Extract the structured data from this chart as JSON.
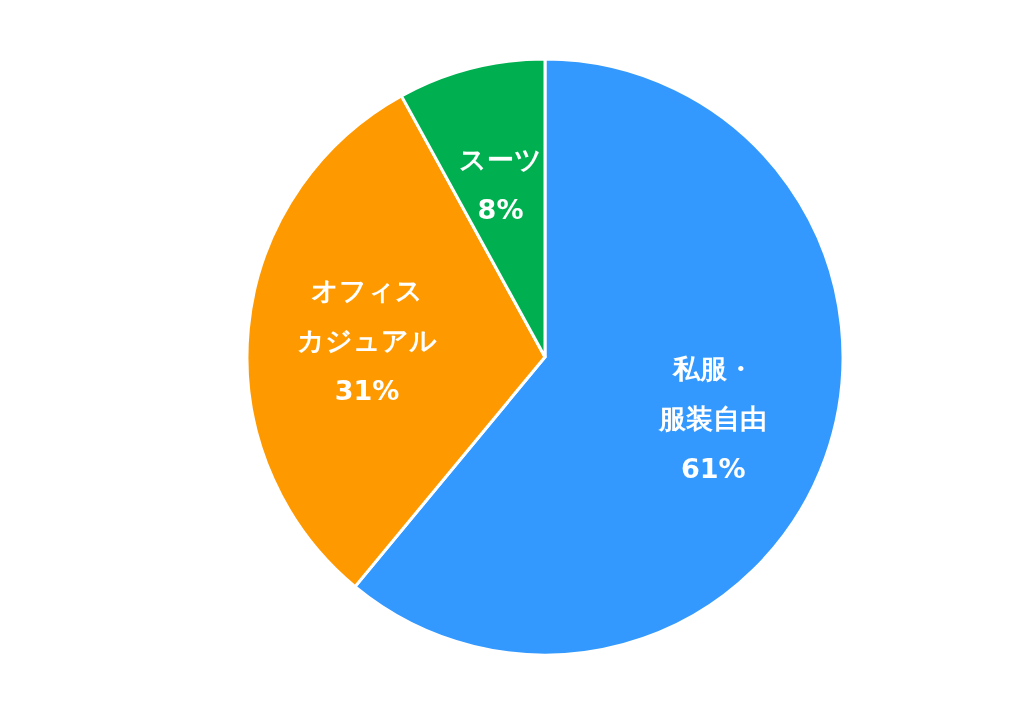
{
  "chart_data": {
    "type": "pie",
    "categories": [
      "私服・服装自由",
      "オフィスカジュアル",
      "スーツ"
    ],
    "values": [
      61,
      31,
      8
    ],
    "value_labels": [
      "61%",
      "31%",
      "8%"
    ],
    "colors": [
      "#3399ff",
      "#ff9900",
      "#00b050"
    ],
    "legend": false
  }
}
